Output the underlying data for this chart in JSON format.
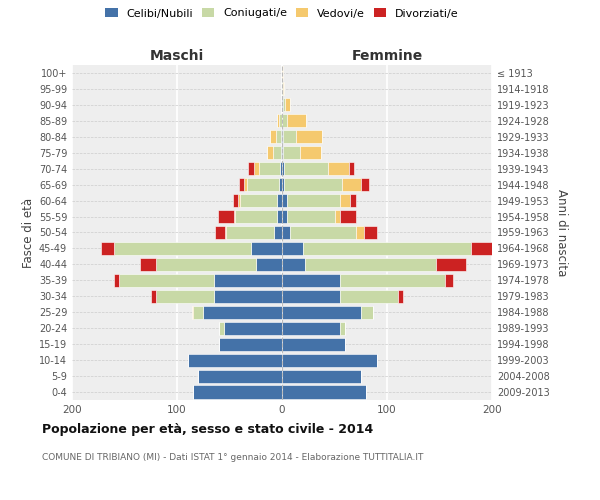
{
  "age_groups": [
    "0-4",
    "5-9",
    "10-14",
    "15-19",
    "20-24",
    "25-29",
    "30-34",
    "35-39",
    "40-44",
    "45-49",
    "50-54",
    "55-59",
    "60-64",
    "65-69",
    "70-74",
    "75-79",
    "80-84",
    "85-89",
    "90-94",
    "95-99",
    "100+"
  ],
  "birth_years": [
    "2009-2013",
    "2004-2008",
    "1999-2003",
    "1994-1998",
    "1989-1993",
    "1984-1988",
    "1979-1983",
    "1974-1978",
    "1969-1973",
    "1964-1968",
    "1959-1963",
    "1954-1958",
    "1949-1953",
    "1944-1948",
    "1939-1943",
    "1934-1938",
    "1929-1933",
    "1924-1928",
    "1919-1923",
    "1914-1918",
    "≤ 1913"
  ],
  "colors": {
    "celibi": "#4472a8",
    "coniugati": "#c8d9a6",
    "vedovi": "#f5c96e",
    "divorziati": "#cc2222"
  },
  "males": {
    "celibi": [
      85,
      80,
      90,
      60,
      55,
      75,
      65,
      65,
      25,
      30,
      8,
      5,
      5,
      3,
      2,
      1,
      1,
      0,
      0,
      0,
      0
    ],
    "coniugati": [
      0,
      0,
      0,
      0,
      5,
      10,
      55,
      90,
      95,
      130,
      45,
      40,
      35,
      30,
      20,
      8,
      5,
      3,
      0,
      0,
      0
    ],
    "vedovi": [
      0,
      0,
      0,
      0,
      0,
      1,
      0,
      0,
      0,
      0,
      1,
      1,
      2,
      3,
      5,
      5,
      5,
      2,
      0,
      0,
      0
    ],
    "divorziati": [
      0,
      0,
      0,
      0,
      0,
      0,
      5,
      5,
      15,
      12,
      10,
      15,
      5,
      5,
      5,
      0,
      0,
      0,
      0,
      0,
      0
    ]
  },
  "females": {
    "nubili": [
      80,
      75,
      90,
      60,
      55,
      75,
      55,
      55,
      22,
      20,
      8,
      5,
      5,
      2,
      2,
      1,
      1,
      0,
      1,
      0,
      0
    ],
    "coniugati": [
      0,
      0,
      0,
      0,
      5,
      12,
      55,
      100,
      125,
      160,
      62,
      45,
      50,
      55,
      42,
      16,
      12,
      5,
      2,
      1,
      0
    ],
    "vedovi": [
      0,
      0,
      0,
      0,
      0,
      0,
      0,
      0,
      0,
      0,
      8,
      5,
      10,
      18,
      20,
      20,
      25,
      18,
      5,
      1,
      1
    ],
    "divorziati": [
      0,
      0,
      0,
      0,
      0,
      0,
      5,
      8,
      28,
      28,
      12,
      15,
      5,
      8,
      5,
      0,
      0,
      0,
      0,
      0,
      0
    ]
  },
  "xlim": 200,
  "title": "Popolazione per età, sesso e stato civile - 2014",
  "subtitle": "COMUNE DI TRIBIANO (MI) - Dati ISTAT 1° gennaio 2014 - Elaborazione TUTTITALIA.IT",
  "ylabel_left": "Fasce di età",
  "ylabel_right": "Anni di nascita",
  "xlabel_left": "Maschi",
  "xlabel_right": "Femmine",
  "bg_color": "#ffffff",
  "plot_bg_color": "#eeeeee"
}
